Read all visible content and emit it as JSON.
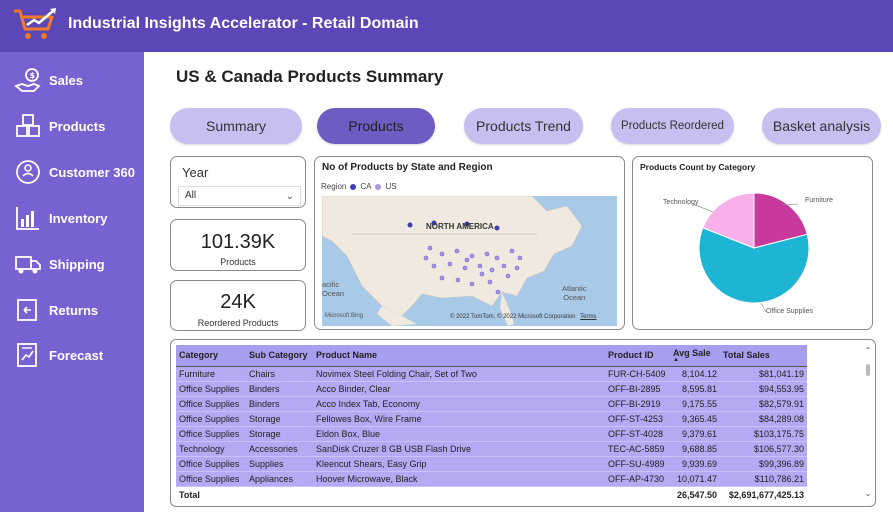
{
  "header": {
    "title": "Industrial Insights Accelerator - Retail Domain",
    "logo_icon": "shopping-cart-growth-icon"
  },
  "sidebar": {
    "items": [
      {
        "label": "Sales",
        "icon": "money-hand-icon"
      },
      {
        "label": "Products",
        "icon": "boxes-icon"
      },
      {
        "label": "Customer 360",
        "icon": "customer-360-icon"
      },
      {
        "label": "Inventory",
        "icon": "inventory-chart-icon"
      },
      {
        "label": "Shipping",
        "icon": "truck-icon"
      },
      {
        "label": "Returns",
        "icon": "return-box-icon"
      },
      {
        "label": "Forecast",
        "icon": "forecast-report-icon"
      }
    ]
  },
  "page": {
    "title": "US & Canada Products Summary"
  },
  "tabs": [
    {
      "label": "Summary",
      "active": false
    },
    {
      "label": "Products",
      "active": true
    },
    {
      "label": "Products Trend",
      "active": false
    },
    {
      "label": "Products Reordered",
      "active": false
    },
    {
      "label": "Basket analysis",
      "active": false
    }
  ],
  "slicer": {
    "label": "Year",
    "value": "All"
  },
  "kpis": [
    {
      "value": "101.39K",
      "label": "Products"
    },
    {
      "value": "24K",
      "label": "Reordered Products"
    }
  ],
  "map": {
    "title": "No of Products by State and Region",
    "legend_title": "Region",
    "legend_items": [
      {
        "label": "CA",
        "color": "#3f3fb0"
      },
      {
        "label": "US",
        "color": "#a897e8"
      }
    ],
    "labels": {
      "region": "NORTH AMERICA",
      "pacific": "acific\nOcean",
      "atlantic": "Atlantic\nOcean"
    },
    "credit": "© 2022 TomTom, © 2022 Microsoft Corporation",
    "terms": "Terms",
    "bing": "Microsoft Bing"
  },
  "colors": {
    "accent": "#5b47b5",
    "sidebar": "#7762d2",
    "tab": "#c7bff0",
    "tab_active": "#6f5cc3",
    "table_row": "#b3aaf3"
  },
  "chart_data": {
    "type": "pie",
    "title": "Products Count  by Category",
    "slices": [
      {
        "label": "Furniture",
        "value": 21,
        "color": "#c7399a"
      },
      {
        "label": "Office Supplies",
        "value": 60,
        "color": "#1eb4d4"
      },
      {
        "label": "Technology",
        "value": 19,
        "color": "#f8b0ea"
      }
    ]
  },
  "table": {
    "columns": [
      "Category",
      "Sub Category",
      "Product Name",
      "Product ID",
      "Avg Sale",
      "Total Sales"
    ],
    "rows": [
      [
        "Furniture",
        "Chairs",
        "Novimex Steel Folding Chair, Set of Two",
        "FUR-CH-5409",
        "8,104.12",
        "$81,041.19"
      ],
      [
        "Office Supplies",
        "Binders",
        "Acco Binder, Clear",
        "OFF-BI-2895",
        "8,595.81",
        "$94,553.95"
      ],
      [
        "Office Supplies",
        "Binders",
        "Acco Index Tab, Economy",
        "OFF-BI-2919",
        "9,175.55",
        "$82,579.91"
      ],
      [
        "Office Supplies",
        "Storage",
        "Fellowes Box, Wire Frame",
        "OFF-ST-4253",
        "9,365.45",
        "$84,289.08"
      ],
      [
        "Office Supplies",
        "Storage",
        "Eldon Box, Blue",
        "OFF-ST-4028",
        "9,379.61",
        "$103,175.75"
      ],
      [
        "Technology",
        "Accessories",
        "SanDisk Cruzer 8 GB USB Flash Drive",
        "TEC-AC-5859",
        "9,688.85",
        "$106,577.30"
      ],
      [
        "Office Supplies",
        "Supplies",
        "Kleencut Shears, Easy Grip",
        "OFF-SU-4989",
        "9,939.69",
        "$99,396.89"
      ],
      [
        "Office Supplies",
        "Appliances",
        "Hoover Microwave, Black",
        "OFF-AP-4730",
        "10,071.47",
        "$110,786.21"
      ]
    ],
    "total": {
      "label": "Total",
      "avg_sale": "26,547.50",
      "total_sales": "$2,691,677,425.13"
    }
  }
}
